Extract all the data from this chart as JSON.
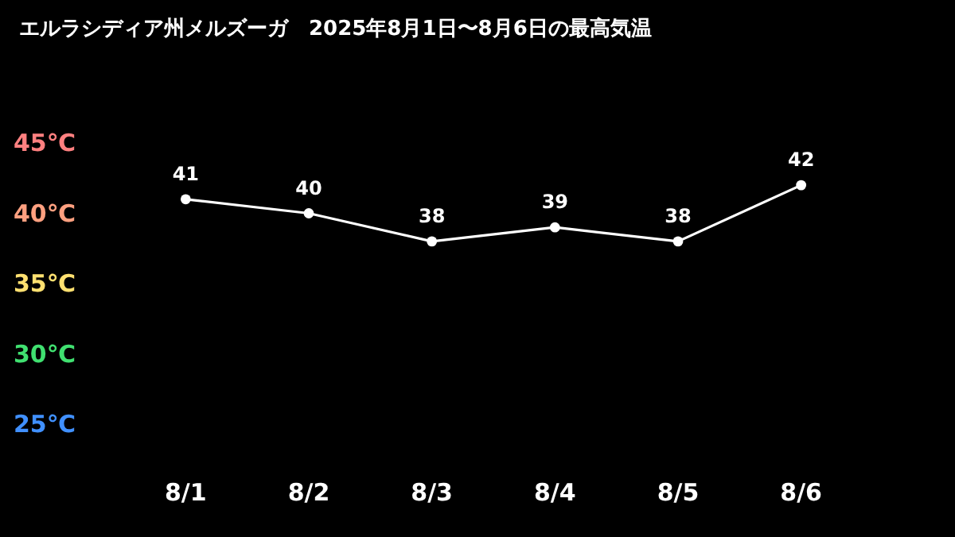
{
  "chart_data": {
    "type": "line",
    "title": "エルラシディア州メルズーガ　2025年8月1日〜8月6日の最高気温",
    "categories": [
      "8/1",
      "8/2",
      "8/3",
      "8/4",
      "8/5",
      "8/6"
    ],
    "series": [
      {
        "color": "#ffffff",
        "values": [
          41,
          40,
          38,
          39,
          38,
          42
        ]
      }
    ],
    "ylim": [
      25,
      45
    ],
    "yticks": [
      {
        "value": 45,
        "label": "45℃"
      },
      {
        "value": 40,
        "label": "40℃"
      },
      {
        "value": 35,
        "label": "35℃"
      },
      {
        "value": 30,
        "label": "30℃"
      },
      {
        "value": 25,
        "label": "25℃"
      }
    ],
    "data_labels": true,
    "marker": "circle",
    "line_style": "solid",
    "grid": false
  }
}
